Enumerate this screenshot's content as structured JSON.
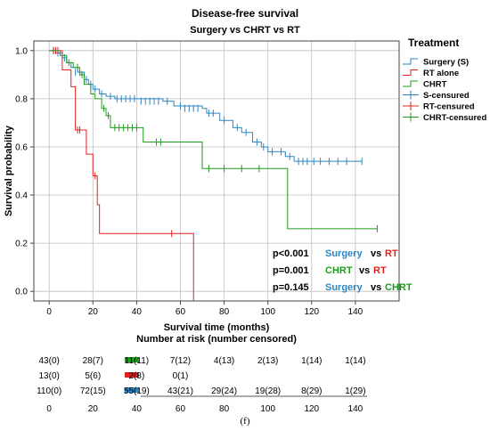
{
  "title": "Disease-free survival",
  "subtitle": "Surgery vs CHRT vs RT",
  "caption": "(f)",
  "colors": {
    "surgery": "#2E86C1",
    "rt": "#E02020",
    "chrt": "#1E9B1E",
    "grid": "#bfbfbf",
    "axis": "#444444"
  },
  "legend": {
    "title": "Treatment",
    "items": [
      {
        "label": "Surgery (S)",
        "key": "surgery",
        "kind": "step"
      },
      {
        "label": "RT alone",
        "key": "rt",
        "kind": "step"
      },
      {
        "label": "CHRT",
        "key": "chrt",
        "kind": "step"
      },
      {
        "label": "S-censured",
        "key": "surgery",
        "kind": "cross"
      },
      {
        "label": "RT-censured",
        "key": "rt",
        "kind": "cross"
      },
      {
        "label": "CHRT-censured",
        "key": "chrt",
        "kind": "cross"
      }
    ]
  },
  "pvalues": [
    {
      "p": "p<0.001",
      "a": "Surgery",
      "vs": "vs",
      "b": "RT",
      "a_key": "surgery",
      "b_key": "rt"
    },
    {
      "p": "p=0.001",
      "a": "CHRT",
      "vs": "vs",
      "b": "RT",
      "a_key": "chrt",
      "b_key": "rt"
    },
    {
      "p": "p=0.145",
      "a": "Surgery",
      "vs": "vs",
      "b": "CHRT",
      "a_key": "surgery",
      "b_key": "chrt"
    }
  ],
  "risk_table": {
    "title": "Number at risk (number censored)",
    "time_points": [
      "0",
      "20",
      "40",
      "60",
      "80",
      "100",
      "120",
      "140"
    ],
    "rows": [
      {
        "key": "chrt",
        "values": [
          "43(0)",
          "28(7)",
          "11(11)",
          "7(12)",
          "4(13)",
          "2(13)",
          "1(14)",
          "1(14)"
        ]
      },
      {
        "key": "rt",
        "values": [
          "13(0)",
          "5(6)",
          "2(8)",
          "0(1)"
        ]
      },
      {
        "key": "surgery",
        "values": [
          "110(0)",
          "72(15)",
          "55(19)",
          "43(21)",
          "29(24)",
          "19(28)",
          "8(29)",
          "1(29)"
        ]
      }
    ]
  },
  "chart_data": {
    "type": "line",
    "xlabel": "Survival time (months)",
    "ylabel": "Survival probability",
    "xlim": [
      -7,
      160
    ],
    "ylim": [
      -0.04,
      1.04
    ],
    "xticks": [
      0,
      20,
      40,
      60,
      80,
      100,
      120,
      140
    ],
    "yticks": [
      0.0,
      0.2,
      0.4,
      0.6,
      0.8,
      1.0
    ],
    "grid": true,
    "legend_position": "outside-right",
    "series": [
      {
        "name": "Surgery (S)",
        "key": "surgery",
        "steps": [
          [
            0,
            1.0
          ],
          [
            3,
            0.99
          ],
          [
            6,
            0.97
          ],
          [
            8,
            0.95
          ],
          [
            10,
            0.93
          ],
          [
            13,
            0.91
          ],
          [
            16,
            0.88
          ],
          [
            18,
            0.86
          ],
          [
            20,
            0.84
          ],
          [
            23,
            0.82
          ],
          [
            26,
            0.81
          ],
          [
            30,
            0.8
          ],
          [
            52,
            0.79
          ],
          [
            57,
            0.77
          ],
          [
            70,
            0.76
          ],
          [
            72,
            0.74
          ],
          [
            78,
            0.71
          ],
          [
            84,
            0.68
          ],
          [
            88,
            0.66
          ],
          [
            93,
            0.62
          ],
          [
            97,
            0.6
          ],
          [
            100,
            0.58
          ],
          [
            104,
            0.58
          ],
          [
            108,
            0.56
          ],
          [
            112,
            0.54
          ],
          [
            143,
            0.54
          ]
        ],
        "censored": [
          [
            2,
            1.0
          ],
          [
            4,
            0.99
          ],
          [
            7,
            0.97
          ],
          [
            12,
            0.91
          ],
          [
            14,
            0.91
          ],
          [
            17,
            0.88
          ],
          [
            19,
            0.86
          ],
          [
            21,
            0.84
          ],
          [
            24,
            0.82
          ],
          [
            28,
            0.81
          ],
          [
            31,
            0.8
          ],
          [
            33,
            0.8
          ],
          [
            35,
            0.8
          ],
          [
            37,
            0.8
          ],
          [
            39,
            0.8
          ],
          [
            42,
            0.79
          ],
          [
            44,
            0.79
          ],
          [
            46,
            0.79
          ],
          [
            48,
            0.79
          ],
          [
            50,
            0.79
          ],
          [
            54,
            0.79
          ],
          [
            60,
            0.77
          ],
          [
            62,
            0.76
          ],
          [
            64,
            0.76
          ],
          [
            66,
            0.76
          ],
          [
            68,
            0.76
          ],
          [
            73,
            0.74
          ],
          [
            75,
            0.74
          ],
          [
            80,
            0.71
          ],
          [
            86,
            0.68
          ],
          [
            90,
            0.66
          ],
          [
            95,
            0.62
          ],
          [
            98,
            0.6
          ],
          [
            102,
            0.58
          ],
          [
            106,
            0.58
          ],
          [
            110,
            0.56
          ],
          [
            114,
            0.54
          ],
          [
            116,
            0.54
          ],
          [
            118,
            0.54
          ],
          [
            121,
            0.54
          ],
          [
            124,
            0.54
          ],
          [
            128,
            0.54
          ],
          [
            132,
            0.54
          ],
          [
            136,
            0.54
          ],
          [
            143,
            0.54
          ]
        ]
      },
      {
        "name": "RT alone",
        "key": "rt",
        "steps": [
          [
            0,
            1.0
          ],
          [
            6,
            0.92
          ],
          [
            10,
            0.85
          ],
          [
            12,
            0.67
          ],
          [
            17,
            0.57
          ],
          [
            20,
            0.48
          ],
          [
            22,
            0.36
          ],
          [
            23,
            0.24
          ],
          [
            66,
            0.24
          ],
          [
            66,
            -0.04
          ]
        ],
        "censored": [
          [
            2,
            1.0
          ],
          [
            3,
            1.0
          ],
          [
            4,
            1.0
          ],
          [
            13,
            0.67
          ],
          [
            14,
            0.67
          ],
          [
            21,
            0.48
          ],
          [
            56,
            0.24
          ]
        ]
      },
      {
        "name": "CHRT",
        "key": "chrt",
        "steps": [
          [
            0,
            1.0
          ],
          [
            5,
            0.98
          ],
          [
            8,
            0.95
          ],
          [
            11,
            0.93
          ],
          [
            14,
            0.9
          ],
          [
            16,
            0.86
          ],
          [
            19,
            0.82
          ],
          [
            21,
            0.8
          ],
          [
            24,
            0.76
          ],
          [
            26,
            0.73
          ],
          [
            28,
            0.68
          ],
          [
            43,
            0.62
          ],
          [
            70,
            0.51
          ],
          [
            109,
            0.51
          ],
          [
            109,
            0.26
          ],
          [
            150,
            0.26
          ]
        ],
        "censored": [
          [
            9,
            0.95
          ],
          [
            13,
            0.93
          ],
          [
            15,
            0.9
          ],
          [
            25,
            0.76
          ],
          [
            27,
            0.73
          ],
          [
            30,
            0.68
          ],
          [
            32,
            0.68
          ],
          [
            34,
            0.68
          ],
          [
            36,
            0.68
          ],
          [
            38,
            0.68
          ],
          [
            40,
            0.68
          ],
          [
            49,
            0.62
          ],
          [
            51,
            0.62
          ],
          [
            73,
            0.51
          ],
          [
            80,
            0.51
          ],
          [
            88,
            0.51
          ],
          [
            96,
            0.51
          ],
          [
            150,
            0.26
          ]
        ]
      }
    ]
  }
}
